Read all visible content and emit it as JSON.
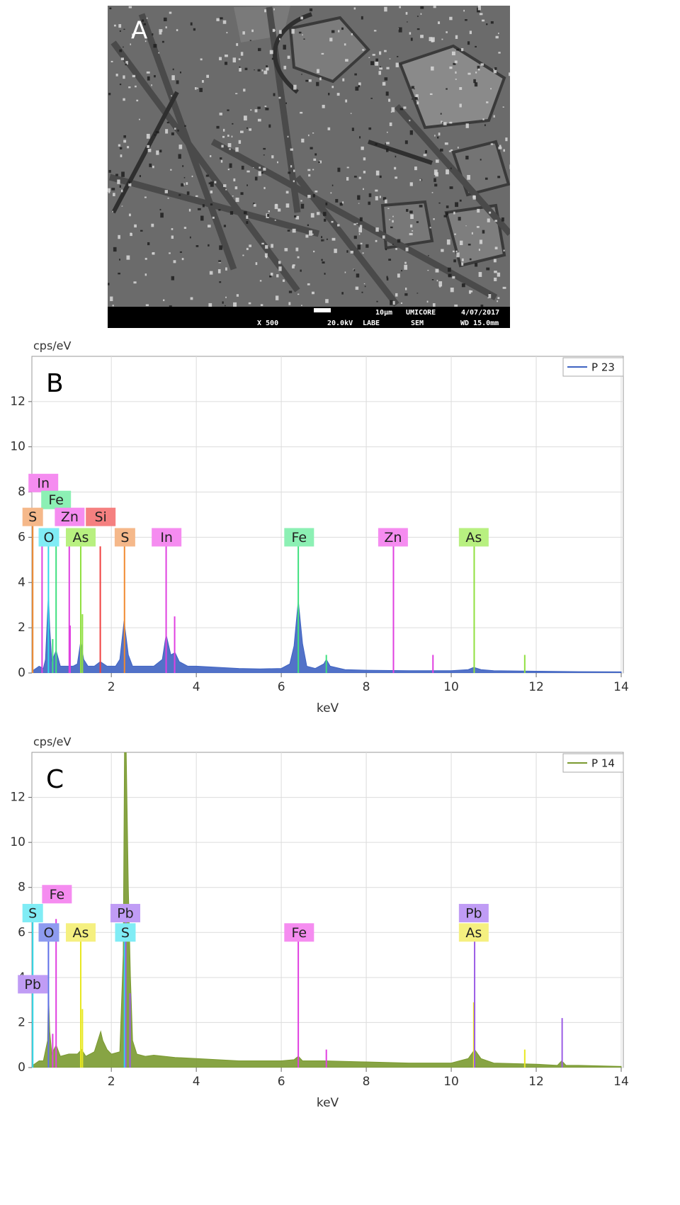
{
  "panel_a": {
    "label": "A",
    "scale_text": "10μm",
    "lab": "UMICORE",
    "date": "4/07/2017",
    "magnification": "X 500",
    "voltage": "20.0kV",
    "lab_code": "LABE",
    "mode": "SEM",
    "working_distance": "WD 15.0mm"
  },
  "chart_data": [
    {
      "type": "area",
      "panel_label": "B",
      "y_label": "cps/eV",
      "x_label": "keV",
      "xlim": [
        0.13,
        14.05
      ],
      "ylim": [
        0,
        14
      ],
      "xticks": [
        2,
        4,
        6,
        8,
        10,
        12,
        14
      ],
      "yticks": [
        0,
        2,
        4,
        6,
        8,
        10,
        12
      ],
      "grid": true,
      "legend": "upper right",
      "series": [
        {
          "name": "P 23",
          "color": "#3f63c2",
          "x": [
            0.15,
            0.3,
            0.4,
            0.45,
            0.52,
            0.55,
            0.6,
            0.7,
            0.8,
            0.9,
            1.0,
            1.1,
            1.2,
            1.28,
            1.35,
            1.45,
            1.6,
            1.74,
            1.9,
            2.1,
            2.2,
            2.3,
            2.4,
            2.5,
            2.7,
            3.0,
            3.2,
            3.29,
            3.4,
            3.5,
            3.6,
            3.8,
            4.0,
            4.5,
            5.0,
            5.5,
            6.0,
            6.2,
            6.3,
            6.4,
            6.5,
            6.6,
            6.8,
            7.0,
            7.06,
            7.15,
            7.5,
            8.0,
            9.0,
            10.0,
            10.4,
            10.53,
            10.7,
            11.0,
            12.0,
            13.0,
            14.0
          ],
          "values": [
            0.1,
            0.3,
            0.2,
            0.6,
            3.5,
            2.0,
            0.5,
            1.0,
            0.3,
            0.3,
            0.3,
            0.3,
            0.4,
            1.4,
            0.6,
            0.3,
            0.3,
            0.5,
            0.3,
            0.3,
            0.6,
            2.3,
            0.8,
            0.3,
            0.3,
            0.3,
            0.6,
            1.7,
            0.8,
            0.9,
            0.5,
            0.3,
            0.3,
            0.25,
            0.2,
            0.18,
            0.2,
            0.4,
            1.2,
            3.2,
            1.3,
            0.3,
            0.2,
            0.4,
            0.6,
            0.3,
            0.15,
            0.12,
            0.1,
            0.1,
            0.15,
            0.25,
            0.15,
            0.1,
            0.08,
            0.06,
            0.05
          ]
        }
      ],
      "element_lines": [
        {
          "x": 0.15,
          "height": 6.7,
          "color": "#f08a30"
        },
        {
          "x": 0.37,
          "height": 5.8,
          "color": "#e040e0"
        },
        {
          "x": 0.52,
          "height": 5.8,
          "color": "#30d8e8"
        },
        {
          "x": 0.62,
          "height": 1.5,
          "color": "#40e080"
        },
        {
          "x": 0.7,
          "height": 6.4,
          "color": "#40e080"
        },
        {
          "x": 1.01,
          "height": 5.8,
          "color": "#e040e0"
        },
        {
          "x": 1.03,
          "height": 2.1,
          "color": "#e040e0"
        },
        {
          "x": 1.28,
          "height": 5.8,
          "color": "#90e040"
        },
        {
          "x": 1.32,
          "height": 2.6,
          "color": "#90e040"
        },
        {
          "x": 1.74,
          "height": 5.6,
          "color": "#f04040"
        },
        {
          "x": 2.31,
          "height": 5.8,
          "color": "#f08a30"
        },
        {
          "x": 3.29,
          "height": 5.8,
          "color": "#e040e0"
        },
        {
          "x": 3.49,
          "height": 2.5,
          "color": "#e040e0"
        },
        {
          "x": 6.4,
          "height": 5.8,
          "color": "#40e080"
        },
        {
          "x": 7.06,
          "height": 0.8,
          "color": "#40e080"
        },
        {
          "x": 8.64,
          "height": 5.8,
          "color": "#e040e0"
        },
        {
          "x": 9.57,
          "height": 0.8,
          "color": "#e040e0"
        },
        {
          "x": 10.54,
          "height": 5.8,
          "color": "#90e040"
        },
        {
          "x": 11.73,
          "height": 0.8,
          "color": "#90e040"
        }
      ],
      "element_labels": [
        {
          "text": "In",
          "x": 0.4,
          "level": 8.4,
          "color": "#f58cf0"
        },
        {
          "text": "Fe",
          "x": 0.7,
          "level": 7.65,
          "color": "#8cf0b4"
        },
        {
          "text": "S",
          "x": 0.15,
          "level": 6.9,
          "color": "#f5b88a"
        },
        {
          "text": "Zn",
          "x": 1.02,
          "level": 6.9,
          "color": "#f58cf0"
        },
        {
          "text": "Si",
          "x": 1.75,
          "level": 6.9,
          "color": "#f58080"
        },
        {
          "text": "O",
          "x": 0.53,
          "level": 6.0,
          "color": "#80ecf5"
        },
        {
          "text": "As",
          "x": 1.28,
          "level": 6.0,
          "color": "#b8f080"
        },
        {
          "text": "S",
          "x": 2.32,
          "level": 6.0,
          "color": "#f5b88a"
        },
        {
          "text": "In",
          "x": 3.3,
          "level": 6.0,
          "color": "#f58cf0"
        },
        {
          "text": "Fe",
          "x": 6.42,
          "level": 6.0,
          "color": "#8cf0b4"
        },
        {
          "text": "Zn",
          "x": 8.63,
          "level": 6.0,
          "color": "#f58cf0"
        },
        {
          "text": "As",
          "x": 10.53,
          "level": 6.0,
          "color": "#b8f080"
        }
      ]
    },
    {
      "type": "area",
      "panel_label": "C",
      "y_label": "cps/eV",
      "x_label": "keV",
      "xlim": [
        0.13,
        14.05
      ],
      "ylim": [
        0,
        14
      ],
      "xticks": [
        2,
        4,
        6,
        8,
        10,
        12,
        14
      ],
      "yticks": [
        0,
        2,
        4,
        6,
        8,
        10,
        12
      ],
      "grid": true,
      "legend": "upper right",
      "series": [
        {
          "name": "P 14",
          "color": "#7a9a30",
          "x": [
            0.15,
            0.3,
            0.4,
            0.5,
            0.52,
            0.55,
            0.6,
            0.7,
            0.8,
            1.0,
            1.2,
            1.3,
            1.4,
            1.6,
            1.75,
            1.8,
            1.9,
            2.0,
            2.2,
            2.28,
            2.31,
            2.35,
            2.4,
            2.45,
            2.5,
            2.6,
            2.8,
            3.0,
            3.5,
            4.0,
            4.5,
            5.0,
            5.5,
            6.0,
            6.3,
            6.4,
            6.5,
            7.0,
            8.0,
            9.0,
            10.0,
            10.4,
            10.55,
            10.7,
            11.0,
            12.0,
            12.5,
            12.6,
            12.7,
            13.0,
            14.0
          ],
          "values": [
            0.1,
            0.3,
            0.3,
            1.2,
            3.4,
            1.6,
            0.6,
            1.0,
            0.5,
            0.6,
            0.6,
            0.8,
            0.5,
            0.7,
            1.6,
            1.2,
            0.8,
            0.6,
            0.7,
            5,
            14,
            14,
            8,
            4,
            1.2,
            0.6,
            0.5,
            0.55,
            0.45,
            0.4,
            0.35,
            0.3,
            0.3,
            0.3,
            0.35,
            0.5,
            0.3,
            0.3,
            0.25,
            0.2,
            0.2,
            0.4,
            0.8,
            0.4,
            0.2,
            0.15,
            0.1,
            0.3,
            0.1,
            0.1,
            0.05
          ]
        }
      ],
      "element_lines": [
        {
          "x": 0.15,
          "height": 6.8,
          "color": "#30d8e8"
        },
        {
          "x": 0.52,
          "height": 5.8,
          "color": "#6070e8"
        },
        {
          "x": 0.62,
          "height": 1.5,
          "color": "#e040e0"
        },
        {
          "x": 0.7,
          "height": 6.6,
          "color": "#e040e0"
        },
        {
          "x": 1.28,
          "height": 5.8,
          "color": "#e8e820"
        },
        {
          "x": 1.32,
          "height": 2.6,
          "color": "#e8e820"
        },
        {
          "x": 2.31,
          "height": 5.8,
          "color": "#30d8e8"
        },
        {
          "x": 2.34,
          "height": 6.6,
          "color": "#9b5de5"
        },
        {
          "x": 2.44,
          "height": 3.3,
          "color": "#9b5de5"
        },
        {
          "x": 6.4,
          "height": 5.8,
          "color": "#e040e0"
        },
        {
          "x": 7.06,
          "height": 0.8,
          "color": "#e040e0"
        },
        {
          "x": 10.53,
          "height": 2.9,
          "color": "#e8e820"
        },
        {
          "x": 10.55,
          "height": 5.8,
          "color": "#9b5de5"
        },
        {
          "x": 11.73,
          "height": 0.8,
          "color": "#e8e820"
        },
        {
          "x": 12.61,
          "height": 2.2,
          "color": "#9b5de5"
        }
      ],
      "element_labels": [
        {
          "text": "Fe",
          "x": 0.72,
          "level": 7.7,
          "color": "#f58cf0"
        },
        {
          "text": "S",
          "x": 0.15,
          "level": 6.86,
          "color": "#80ecf5"
        },
        {
          "text": "Pb",
          "x": 2.33,
          "level": 6.86,
          "color": "#c09cf5"
        },
        {
          "text": "Pb",
          "x": 10.53,
          "level": 6.86,
          "color": "#c09cf5"
        },
        {
          "text": "O",
          "x": 0.53,
          "level": 6.0,
          "color": "#8e9bf0"
        },
        {
          "text": "As",
          "x": 1.28,
          "level": 6.0,
          "color": "#f5f080"
        },
        {
          "text": "S",
          "x": 2.33,
          "level": 6.0,
          "color": "#80ecf5"
        },
        {
          "text": "Fe",
          "x": 6.42,
          "level": 6.0,
          "color": "#f58cf0"
        },
        {
          "text": "As",
          "x": 10.53,
          "level": 6.0,
          "color": "#f5f080"
        },
        {
          "text": "Pb",
          "x": 0.15,
          "level": 3.7,
          "color": "#c09cf5"
        }
      ]
    }
  ]
}
